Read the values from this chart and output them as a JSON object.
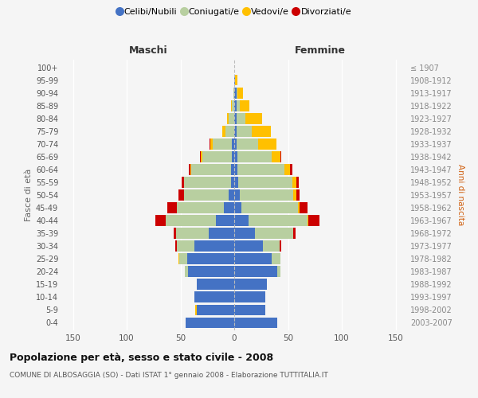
{
  "age_groups": [
    "100+",
    "95-99",
    "90-94",
    "85-89",
    "80-84",
    "75-79",
    "70-74",
    "65-69",
    "60-64",
    "55-59",
    "50-54",
    "45-49",
    "40-44",
    "35-39",
    "30-34",
    "25-29",
    "20-24",
    "15-19",
    "10-14",
    "5-9",
    "0-4"
  ],
  "birth_years": [
    "≤ 1907",
    "1908-1912",
    "1913-1917",
    "1918-1922",
    "1923-1927",
    "1928-1932",
    "1933-1937",
    "1938-1942",
    "1943-1947",
    "1948-1952",
    "1953-1957",
    "1958-1962",
    "1963-1967",
    "1968-1972",
    "1973-1977",
    "1978-1982",
    "1983-1987",
    "1988-1992",
    "1993-1997",
    "1998-2002",
    "2003-2007"
  ],
  "maschi": {
    "celibi": [
      0,
      0,
      0,
      0,
      0,
      0,
      2,
      2,
      3,
      3,
      5,
      10,
      17,
      24,
      37,
      44,
      43,
      35,
      37,
      35,
      45
    ],
    "coniugati": [
      0,
      0,
      1,
      2,
      5,
      8,
      18,
      28,
      37,
      44,
      42,
      43,
      47,
      30,
      16,
      7,
      3,
      0,
      0,
      0,
      0
    ],
    "vedovi": [
      0,
      0,
      0,
      1,
      2,
      3,
      2,
      1,
      1,
      0,
      0,
      0,
      0,
      0,
      0,
      1,
      0,
      0,
      0,
      1,
      0
    ],
    "divorziati": [
      0,
      0,
      0,
      0,
      0,
      0,
      1,
      1,
      1,
      2,
      5,
      9,
      9,
      2,
      2,
      0,
      0,
      0,
      0,
      0,
      0
    ]
  },
  "femmine": {
    "nubili": [
      0,
      1,
      2,
      2,
      2,
      2,
      2,
      3,
      3,
      4,
      5,
      7,
      13,
      19,
      27,
      35,
      40,
      30,
      29,
      29,
      40
    ],
    "coniugate": [
      0,
      0,
      1,
      3,
      8,
      14,
      20,
      32,
      44,
      50,
      50,
      52,
      55,
      36,
      15,
      8,
      3,
      0,
      0,
      0,
      0
    ],
    "vedove": [
      0,
      2,
      5,
      9,
      16,
      18,
      17,
      8,
      5,
      4,
      3,
      2,
      1,
      0,
      0,
      0,
      0,
      0,
      0,
      0,
      0
    ],
    "divorziate": [
      0,
      0,
      0,
      0,
      0,
      0,
      0,
      1,
      2,
      2,
      3,
      7,
      10,
      2,
      2,
      0,
      0,
      0,
      0,
      0,
      0
    ]
  },
  "colors": {
    "celibi": "#4472c4",
    "coniugati": "#b8cfa0",
    "vedovi": "#ffc000",
    "divorziati": "#cc0000"
  },
  "xlim": 160,
  "title": "Popolazione per età, sesso e stato civile - 2008",
  "subtitle": "COMUNE DI ALBOSAGGIA (SO) - Dati ISTAT 1° gennaio 2008 - Elaborazione TUTTITALIA.IT",
  "ylabel_left": "Fasce di età",
  "ylabel_right": "Anni di nascita",
  "xlabel_maschi": "Maschi",
  "xlabel_femmine": "Femmine",
  "legend_labels": [
    "Celibi/Nubili",
    "Coniugati/e",
    "Vedovi/e",
    "Divorziati/e"
  ],
  "bg_color": "#f5f5f5",
  "bar_height": 0.85
}
